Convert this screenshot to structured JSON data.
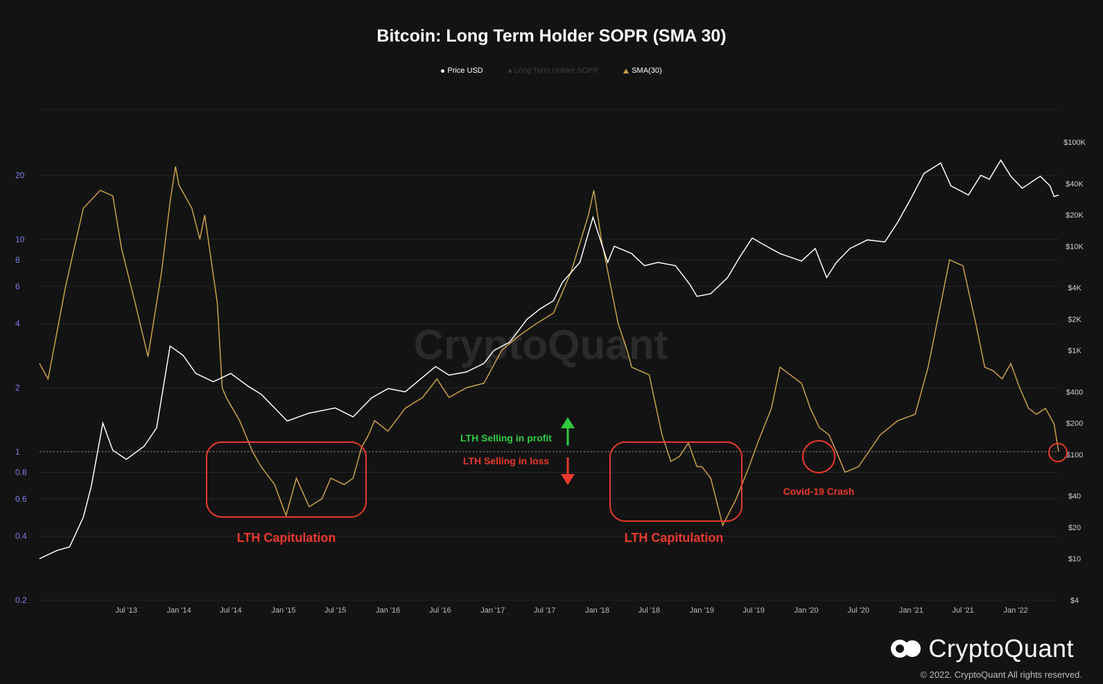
{
  "title": "Bitcoin: Long Term Holder SOPR (SMA 30)",
  "legend": [
    {
      "label": "Price USD",
      "marker": "dot",
      "color": "#ffffff"
    },
    {
      "label": "Long Term Holder SOPR",
      "marker": "dot",
      "color": "#3a3e4a"
    },
    {
      "label": "SMA(30)",
      "marker": "triangle",
      "color": "#c9a24a"
    }
  ],
  "watermark": "CryptoQuant",
  "brand": {
    "name": "CryptoQuant",
    "copyright": "© 2022. CryptoQuant All rights reserved."
  },
  "annotations": {
    "profit": "LTH Selling in profit",
    "loss": "LTH Selling in loss",
    "capitulation1": "LTH Capitulation",
    "capitulation2": "LTH Capitulation",
    "covid": "Covid-19 Crash"
  },
  "colors": {
    "background": "#131313",
    "sopr": "#c9a24a",
    "price": "#ffffff",
    "left_axis": "#7e7ef0",
    "right_axis": "#cfcfcf",
    "annotation_red": "#e8392d",
    "annotation_green": "#2ecc40"
  },
  "chart_data": {
    "type": "line",
    "x_tick_labels": [
      "Jul '13",
      "Jan '14",
      "Jul '14",
      "Jan '15",
      "Jul '15",
      "Jan '16",
      "Jul '16",
      "Jan '17",
      "Jul '17",
      "Jan '18",
      "Jul '18",
      "Jan '19",
      "Jul '19",
      "Jan '20",
      "Jul '20",
      "Jan '21",
      "Jul '21",
      "Jan '22"
    ],
    "x_range": [
      "2012-09-01",
      "2022-05-31"
    ],
    "left_axis": {
      "scale": "log",
      "ticks": [
        0.2,
        0.4,
        0.6,
        0.8,
        1,
        2,
        4,
        6,
        8,
        10,
        20
      ],
      "tick_labels": [
        "0.2",
        "0.4",
        "0.6",
        "0.8",
        "1",
        "2",
        "4",
        "6",
        "8",
        "10",
        "20"
      ]
    },
    "right_axis": {
      "scale": "log",
      "ticks": [
        4,
        10,
        20,
        40,
        100,
        200,
        400,
        1000,
        2000,
        4000,
        10000,
        20000,
        40000,
        100000
      ],
      "tick_labels": [
        "$4",
        "$10",
        "$20",
        "$40",
        "$100",
        "$200",
        "$400",
        "$1K",
        "$2K",
        "$4K",
        "$10K",
        "$20K",
        "$40K",
        "$100K"
      ]
    },
    "reference_line": 1,
    "series": [
      {
        "name": "SMA(30)",
        "axis": "left",
        "x": [
          "2012-09-01",
          "2012-10-01",
          "2012-12-01",
          "2013-02-01",
          "2013-04-01",
          "2013-05-15",
          "2013-06-15",
          "2013-08-01",
          "2013-09-15",
          "2013-11-01",
          "2013-12-01",
          "2013-12-20",
          "2014-01-01",
          "2014-02-15",
          "2014-03-15",
          "2014-04-01",
          "2014-05-15",
          "2014-06-01",
          "2014-06-15",
          "2014-08-01",
          "2014-09-15",
          "2014-10-15",
          "2014-12-01",
          "2015-01-10",
          "2015-02-15",
          "2015-04-01",
          "2015-05-15",
          "2015-06-15",
          "2015-08-01",
          "2015-09-01",
          "2015-10-01",
          "2015-10-25",
          "2015-11-15",
          "2016-01-01",
          "2016-03-01",
          "2016-05-01",
          "2016-06-20",
          "2016-08-01",
          "2016-10-01",
          "2016-12-01",
          "2017-02-01",
          "2017-04-01",
          "2017-06-01",
          "2017-08-01",
          "2017-10-01",
          "2017-12-01",
          "2017-12-20",
          "2018-01-15",
          "2018-03-15",
          "2018-04-15",
          "2018-05-01",
          "2018-07-01",
          "2018-08-15",
          "2018-09-15",
          "2018-10-15",
          "2018-11-15",
          "2018-12-15",
          "2019-01-01",
          "2019-02-01",
          "2019-03-15",
          "2019-05-01",
          "2019-06-15",
          "2019-07-15",
          "2019-09-01",
          "2019-10-01",
          "2019-12-15",
          "2020-01-15",
          "2020-02-15",
          "2020-03-20",
          "2020-04-15",
          "2020-05-15",
          "2020-07-01",
          "2020-09-15",
          "2020-11-15",
          "2021-01-15",
          "2021-03-01",
          "2021-04-15",
          "2021-05-15",
          "2021-07-01",
          "2021-08-15",
          "2021-09-15",
          "2021-10-15",
          "2021-11-15",
          "2021-12-15",
          "2022-01-15",
          "2022-02-15",
          "2022-03-15",
          "2022-04-15",
          "2022-05-15",
          "2022-05-31"
        ],
        "values": [
          2.6,
          2.2,
          6,
          14,
          17,
          16,
          9,
          5,
          2.8,
          7,
          15,
          22,
          18,
          14,
          10,
          13,
          5,
          2,
          1.8,
          1.4,
          1.0,
          0.85,
          0.7,
          0.5,
          0.75,
          0.55,
          0.6,
          0.75,
          0.7,
          0.75,
          1.05,
          1.2,
          1.4,
          1.25,
          1.6,
          1.8,
          2.2,
          1.8,
          2,
          2.1,
          3,
          3.5,
          4,
          4.5,
          7,
          13,
          17,
          10,
          4,
          3,
          2.5,
          2.3,
          1.2,
          0.9,
          0.95,
          1.1,
          0.85,
          0.85,
          0.75,
          0.45,
          0.6,
          0.85,
          1.1,
          1.6,
          2.5,
          2.1,
          1.6,
          1.3,
          1.2,
          1.0,
          0.8,
          0.85,
          1.2,
          1.4,
          1.5,
          2.5,
          5,
          8,
          7.5,
          4,
          2.5,
          2.4,
          2.2,
          2.6,
          2.0,
          1.6,
          1.5,
          1.6,
          1.35,
          1.0
        ]
      },
      {
        "name": "Price USD",
        "axis": "right",
        "x": [
          "2012-09-01",
          "2012-11-01",
          "2012-12-15",
          "2013-02-01",
          "2013-03-01",
          "2013-04-10",
          "2013-05-15",
          "2013-07-01",
          "2013-09-01",
          "2013-10-15",
          "2013-12-01",
          "2014-01-15",
          "2014-03-01",
          "2014-05-01",
          "2014-07-01",
          "2014-09-01",
          "2014-10-15",
          "2015-01-14",
          "2015-04-01",
          "2015-07-01",
          "2015-09-01",
          "2015-11-05",
          "2016-01-01",
          "2016-03-01",
          "2016-06-15",
          "2016-08-01",
          "2016-10-01",
          "2016-12-01",
          "2017-01-05",
          "2017-03-01",
          "2017-05-01",
          "2017-06-15",
          "2017-08-01",
          "2017-09-01",
          "2017-11-01",
          "2017-12-17",
          "2018-02-06",
          "2018-03-01",
          "2018-05-01",
          "2018-06-15",
          "2018-08-01",
          "2018-10-01",
          "2018-11-20",
          "2018-12-15",
          "2019-02-01",
          "2019-04-01",
          "2019-05-15",
          "2019-06-26",
          "2019-08-01",
          "2019-10-01",
          "2019-12-15",
          "2020-02-01",
          "2020-03-12",
          "2020-04-15",
          "2020-06-01",
          "2020-08-01",
          "2020-10-01",
          "2020-11-15",
          "2021-01-01",
          "2021-02-15",
          "2021-04-14",
          "2021-05-20",
          "2021-07-20",
          "2021-09-01",
          "2021-10-01",
          "2021-11-10",
          "2021-12-15",
          "2022-01-24",
          "2022-03-01",
          "2022-03-28",
          "2022-05-01",
          "2022-05-15",
          "2022-05-31"
        ],
        "values": [
          10,
          12,
          13,
          25,
          50,
          200,
          110,
          90,
          120,
          180,
          1100,
          900,
          600,
          500,
          600,
          450,
          380,
          210,
          250,
          280,
          230,
          350,
          430,
          400,
          700,
          580,
          620,
          750,
          1000,
          1200,
          2000,
          2500,
          3000,
          4500,
          7000,
          19000,
          7000,
          10000,
          8500,
          6500,
          7000,
          6500,
          4300,
          3300,
          3500,
          5000,
          8000,
          12000,
          10500,
          8500,
          7200,
          9500,
          5000,
          7000,
          9500,
          11500,
          11000,
          17000,
          29000,
          50000,
          63000,
          38000,
          31000,
          48000,
          44000,
          67000,
          47000,
          36000,
          42000,
          47000,
          38000,
          30000,
          31000
        ]
      }
    ]
  }
}
